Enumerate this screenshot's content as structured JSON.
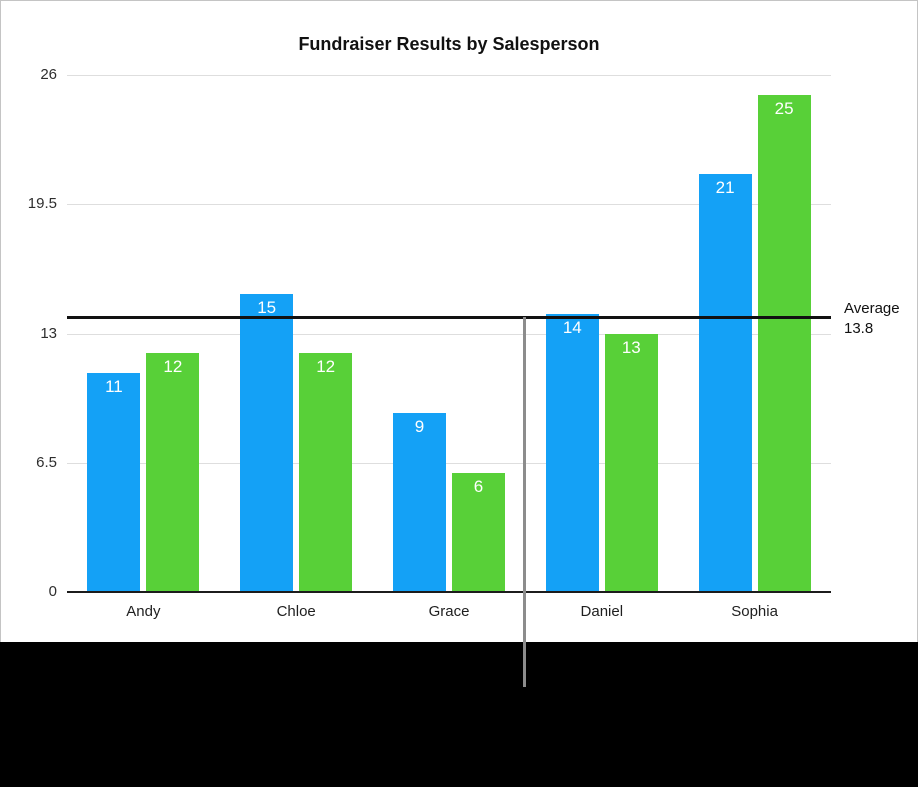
{
  "chart_data": {
    "type": "bar",
    "title": "Fundraiser Results by Salesperson",
    "categories": [
      "Andy",
      "Chloe",
      "Grace",
      "Daniel",
      "Sophia"
    ],
    "series": [
      {
        "name": "blue",
        "color": "#14A1F6",
        "values": [
          11,
          15,
          9,
          14,
          21
        ]
      },
      {
        "name": "green",
        "color": "#58D038",
        "values": [
          12,
          12,
          6,
          13,
          25
        ]
      }
    ],
    "ylim": [
      0,
      26
    ],
    "y_ticks": [
      26,
      19.5,
      13,
      6.5,
      0
    ],
    "grid": true,
    "legend_position": "none",
    "value_labels": "inside-top",
    "average_line": {
      "label": "Average",
      "value": 13.8,
      "display_value": "13.8"
    }
  },
  "colors": {
    "bar_blue": "#14A1F6",
    "bar_green": "#58D038",
    "gridline": "#dedede",
    "axis_line": "#1c1c1c",
    "average_line": "#111111",
    "callout_line": "#8c8c8c",
    "card_background": "#ffffff",
    "card_border": "#c4c4c4",
    "page_background": "#000000",
    "value_label_text": "#ffffff",
    "axis_text": "#2e2e2e"
  }
}
